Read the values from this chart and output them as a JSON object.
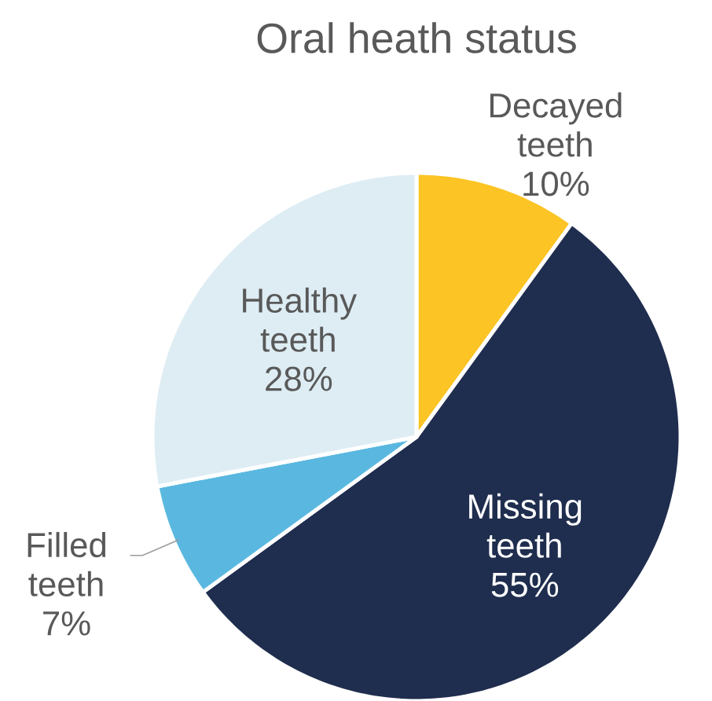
{
  "chart_data": {
    "type": "pie",
    "title": "Oral heath status",
    "categories": [
      "Decayed teeth",
      "Missing teeth",
      "Filled teeth",
      "Healthy teeth"
    ],
    "values": [
      10,
      55,
      7,
      28
    ],
    "value_labels": [
      "10%",
      "55%",
      "7%",
      "28%"
    ],
    "colors": [
      "#fcc424",
      "#1f2d4e",
      "#5ab8e0",
      "#deedf4"
    ]
  }
}
